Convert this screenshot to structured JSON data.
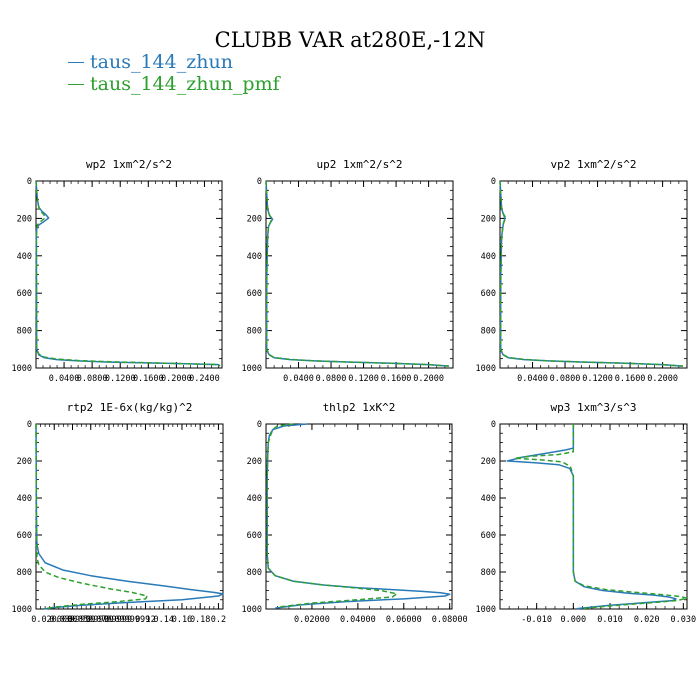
{
  "figure": {
    "title": "CLUBB VAR at280E,-12N",
    "legend": [
      {
        "name": "taus_144_zhun",
        "color": "#2a7ab8"
      },
      {
        "name": "taus_144_zhun_pmf",
        "color": "#2ca02c"
      }
    ]
  },
  "chart_data": [
    {
      "type": "line",
      "title": "wp2  1xm^2/s^2",
      "xlim": [
        0.0,
        0.265
      ],
      "ylim": [
        1000,
        0
      ],
      "xticks": [
        0.04,
        0.08,
        0.12,
        0.16,
        0.2,
        0.24
      ],
      "xtick_labels": [
        "0.0400",
        "0.0800",
        "0.1200",
        "0.1600",
        "0.2000",
        "0.2400"
      ],
      "yticks": [
        0,
        200,
        400,
        600,
        800,
        1000
      ],
      "series": [
        {
          "name": "taus_144_zhun",
          "x": [
            0.0,
            0.002,
            0.004,
            0.008,
            0.014,
            0.018,
            0.012,
            0.004,
            0.001,
            0.0005,
            0.001,
            0.004,
            0.012,
            0.03,
            0.06,
            0.1,
            0.15,
            0.2,
            0.26,
            0.262
          ],
          "y": [
            0,
            100,
            140,
            160,
            180,
            198,
            215,
            235,
            255,
            300,
            900,
            930,
            945,
            955,
            962,
            968,
            972,
            976,
            982,
            990
          ]
        },
        {
          "name": "taus_144_zhun_pmf",
          "x": [
            0.0,
            0.002,
            0.004,
            0.006,
            0.011,
            0.013,
            0.007,
            0.002,
            0.001,
            0.0005,
            0.001,
            0.004,
            0.012,
            0.03,
            0.06,
            0.1,
            0.15,
            0.2,
            0.26,
            0.262
          ],
          "y": [
            0,
            100,
            140,
            160,
            178,
            198,
            215,
            235,
            255,
            300,
            900,
            925,
            942,
            952,
            960,
            966,
            971,
            976,
            982,
            990
          ]
        }
      ]
    },
    {
      "type": "line",
      "title": "up2  1xm^2/s^2",
      "xlim": [
        0.0,
        0.23
      ],
      "ylim": [
        1000,
        0
      ],
      "xticks": [
        0.04,
        0.08,
        0.12,
        0.16,
        0.2
      ],
      "xtick_labels": [
        "0.0400",
        "0.0800",
        "0.1200",
        "0.1600",
        "0.2000"
      ],
      "yticks": [
        0,
        200,
        400,
        600,
        800,
        1000
      ],
      "series": [
        {
          "name": "taus_144_zhun",
          "x": [
            0.0,
            0.002,
            0.004,
            0.008,
            0.005,
            0.003,
            0.002,
            0.001,
            0.0008,
            0.001,
            0.004,
            0.01,
            0.03,
            0.06,
            0.1,
            0.15,
            0.2,
            0.225
          ],
          "y": [
            0,
            150,
            180,
            205,
            225,
            245,
            300,
            500,
            850,
            905,
            930,
            945,
            955,
            962,
            968,
            974,
            982,
            990
          ]
        },
        {
          "name": "taus_144_zhun_pmf",
          "x": [
            0.0,
            0.002,
            0.004,
            0.007,
            0.005,
            0.003,
            0.002,
            0.001,
            0.0008,
            0.001,
            0.004,
            0.01,
            0.03,
            0.06,
            0.1,
            0.15,
            0.2,
            0.225
          ],
          "y": [
            0,
            150,
            180,
            205,
            225,
            245,
            300,
            500,
            850,
            900,
            928,
            944,
            954,
            962,
            968,
            974,
            982,
            990
          ]
        }
      ]
    },
    {
      "type": "line",
      "title": "vp2  1xm^2/s^2",
      "xlim": [
        0.0,
        0.23
      ],
      "ylim": [
        1000,
        0
      ],
      "xticks": [
        0.04,
        0.08,
        0.12,
        0.16,
        0.2
      ],
      "xtick_labels": [
        "0.0400",
        "0.0800",
        "0.1200",
        "0.1600",
        "0.2000"
      ],
      "yticks": [
        0,
        200,
        400,
        600,
        800,
        1000
      ],
      "series": [
        {
          "name": "taus_144_zhun",
          "x": [
            0.0,
            0.002,
            0.004,
            0.006,
            0.004,
            0.002,
            0.001,
            0.0008,
            0.001,
            0.004,
            0.01,
            0.03,
            0.06,
            0.1,
            0.15,
            0.2,
            0.225
          ],
          "y": [
            0,
            150,
            175,
            200,
            230,
            300,
            500,
            850,
            905,
            930,
            945,
            955,
            962,
            968,
            974,
            982,
            990
          ]
        },
        {
          "name": "taus_144_zhun_pmf",
          "x": [
            0.0,
            0.002,
            0.004,
            0.007,
            0.004,
            0.002,
            0.001,
            0.0008,
            0.001,
            0.004,
            0.01,
            0.03,
            0.06,
            0.1,
            0.15,
            0.2,
            0.225
          ],
          "y": [
            0,
            150,
            175,
            195,
            230,
            300,
            500,
            850,
            900,
            928,
            944,
            954,
            962,
            968,
            974,
            982,
            990
          ]
        }
      ]
    },
    {
      "type": "line",
      "title": "rtp2  1E-6x(kg/kg)^2",
      "xlim": [
        0.0,
        0.205
      ],
      "ylim": [
        1000,
        0
      ],
      "xticks": [
        0.02,
        0.04,
        0.06,
        0.08,
        0.1,
        0.12,
        0.14,
        0.16,
        0.18,
        0.2
      ],
      "xtick_labels": [
        "0.0200000",
        "0.0399999",
        "0.0599999",
        "0.0799999",
        "0.0999999",
        "0.12",
        "0.14",
        "0.16",
        "0.18",
        "0.2"
      ],
      "yticks": [
        0,
        200,
        400,
        600,
        800,
        1000
      ],
      "series": [
        {
          "name": "taus_144_zhun",
          "x": [
            0.0,
            0.0005,
            0.001,
            0.003,
            0.01,
            0.03,
            0.06,
            0.1,
            0.14,
            0.17,
            0.195,
            0.205,
            0.2,
            0.16,
            0.1,
            0.05,
            0.02,
            0.008
          ],
          "y": [
            0,
            500,
            650,
            700,
            750,
            790,
            820,
            850,
            875,
            895,
            910,
            918,
            930,
            950,
            965,
            980,
            992,
            1000
          ]
        },
        {
          "name": "taus_144_zhun_pmf",
          "x": [
            0.0,
            0.0005,
            0.001,
            0.003,
            0.01,
            0.025,
            0.05,
            0.08,
            0.105,
            0.122,
            0.12,
            0.09,
            0.05,
            0.02,
            0.008
          ],
          "y": [
            0,
            600,
            720,
            760,
            800,
            830,
            860,
            890,
            910,
            930,
            945,
            960,
            975,
            990,
            1000
          ]
        }
      ]
    },
    {
      "type": "line",
      "title": "thlp2  1xK^2",
      "xlim": [
        0.0,
        0.081
      ],
      "ylim": [
        1000,
        0
      ],
      "xticks": [
        0.02,
        0.04,
        0.06,
        0.08
      ],
      "xtick_labels": [
        "0.02000",
        "0.04000",
        "0.06000",
        "0.08000"
      ],
      "yticks": [
        0,
        200,
        400,
        600,
        800,
        1000
      ],
      "series": [
        {
          "name": "taus_144_zhun",
          "x": [
            0.018,
            0.008,
            0.003,
            0.0015,
            0.001,
            0.0008,
            0.0005,
            0.0005,
            0.001,
            0.004,
            0.012,
            0.025,
            0.04,
            0.055,
            0.068,
            0.076,
            0.08,
            0.078,
            0.06,
            0.035,
            0.015,
            0.004
          ],
          "y": [
            0,
            10,
            30,
            60,
            100,
            150,
            300,
            700,
            780,
            820,
            850,
            870,
            885,
            895,
            905,
            912,
            920,
            930,
            945,
            960,
            978,
            995
          ]
        },
        {
          "name": "taus_144_zhun_pmf",
          "x": [
            0.012,
            0.005,
            0.003,
            0.002,
            0.001,
            0.0008,
            0.0005,
            0.0005,
            0.001,
            0.004,
            0.012,
            0.025,
            0.038,
            0.05,
            0.057,
            0.055,
            0.04,
            0.02,
            0.005
          ],
          "y": [
            0,
            10,
            30,
            60,
            100,
            150,
            300,
            700,
            780,
            820,
            850,
            870,
            885,
            900,
            918,
            935,
            950,
            968,
            990
          ]
        }
      ]
    },
    {
      "type": "line",
      "title": "wp3  1xm^3/s^3",
      "xlim": [
        -0.02,
        0.031
      ],
      "ylim": [
        1000,
        0
      ],
      "xticks": [
        -0.01,
        0.0,
        0.01,
        0.02,
        0.03
      ],
      "xtick_labels": [
        "-0.010",
        "0.000",
        "0.010",
        "0.020",
        "0.030"
      ],
      "yticks": [
        0,
        200,
        400,
        600,
        800,
        1000
      ],
      "series": [
        {
          "name": "taus_144_zhun",
          "x": [
            0.0,
            0.0,
            0.0,
            -0.002,
            -0.008,
            -0.014,
            -0.018,
            -0.01,
            -0.004,
            -0.001,
            0.0,
            0.0,
            0.0,
            0.0005,
            0.003,
            0.008,
            0.015,
            0.022,
            0.026,
            0.028,
            0.027,
            0.02,
            0.01,
            0.001
          ],
          "y": [
            0,
            100,
            130,
            140,
            160,
            180,
            200,
            210,
            220,
            240,
            280,
            300,
            800,
            850,
            880,
            900,
            915,
            925,
            935,
            945,
            955,
            965,
            980,
            998
          ]
        },
        {
          "name": "taus_144_zhun_pmf",
          "x": [
            0.0,
            0.0,
            0.0,
            -0.004,
            -0.012,
            -0.016,
            -0.008,
            -0.003,
            -0.0008,
            0.0,
            0.0,
            0.0005,
            0.003,
            0.009,
            0.017,
            0.024,
            0.029,
            0.031,
            0.028,
            0.02,
            0.01,
            0.002
          ],
          "y": [
            0,
            100,
            150,
            165,
            175,
            185,
            195,
            205,
            230,
            280,
            800,
            850,
            875,
            895,
            910,
            922,
            932,
            942,
            955,
            968,
            983,
            998
          ]
        }
      ]
    }
  ]
}
